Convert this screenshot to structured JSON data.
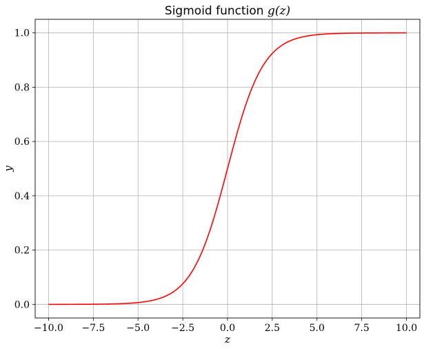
{
  "chart_data": {
    "type": "line",
    "title_prefix": "Sigmoid function ",
    "title_math": "g(z)",
    "xlabel": "z",
    "ylabel": "y",
    "xlim": [
      -10.75,
      10.75
    ],
    "ylim": [
      -0.05,
      1.05
    ],
    "xticks": [
      -10.0,
      -7.5,
      -5.0,
      -2.5,
      0.0,
      2.5,
      5.0,
      7.5,
      10.0
    ],
    "xtick_labels": [
      "−10.0",
      "−7.5",
      "−5.0",
      "−2.5",
      "0.0",
      "2.5",
      "5.0",
      "7.5",
      "10.0"
    ],
    "yticks": [
      0.0,
      0.2,
      0.4,
      0.6,
      0.8,
      1.0
    ],
    "ytick_labels": [
      "0.0",
      "0.2",
      "0.4",
      "0.6",
      "0.8",
      "1.0"
    ],
    "grid": true,
    "series": [
      {
        "color": "#ff0000",
        "x": [
          -10,
          -9,
          -8,
          -7,
          -6,
          -5,
          -4.5,
          -4,
          -3.5,
          -3,
          -2.5,
          -2,
          -1.5,
          -1,
          -0.5,
          0,
          0.5,
          1,
          1.5,
          2,
          2.5,
          3,
          3.5,
          4,
          4.5,
          5,
          6,
          7,
          8,
          9,
          10
        ],
        "y": [
          4.54e-05,
          0.0001234,
          0.0003354,
          0.0009111,
          0.0024726,
          0.0066929,
          0.0109869,
          0.0179862,
          0.0293122,
          0.0474259,
          0.0758582,
          0.1192029,
          0.1824255,
          0.2689414,
          0.3775407,
          0.5,
          0.6224593,
          0.7310586,
          0.8175745,
          0.8807971,
          0.9241418,
          0.9525741,
          0.9706878,
          0.9820138,
          0.9890131,
          0.9933071,
          0.9975274,
          0.9990889,
          0.9996646,
          0.9998766,
          0.9999546
        ]
      }
    ]
  }
}
